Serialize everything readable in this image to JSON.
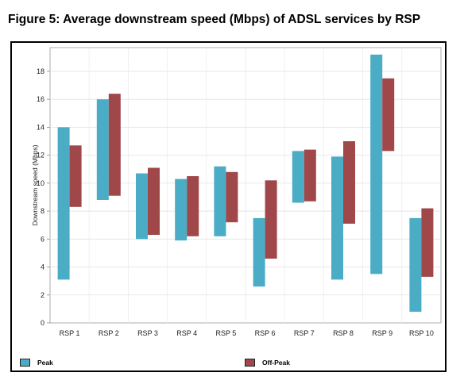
{
  "figure_title": "Figure 5: Average downstream speed (Mbps) of ADSL services by RSP",
  "chart_data": {
    "type": "bar",
    "subtype": "floating-range",
    "categories": [
      "RSP 1",
      "RSP 2",
      "RSP 3",
      "RSP 4",
      "RSP 5",
      "RSP 6",
      "RSP 7",
      "RSP 8",
      "RSP 9",
      "RSP 10"
    ],
    "ylabel": "Downstream speed (Mbps)",
    "xlabel": "",
    "ylim": [
      0,
      19.7
    ],
    "yticks": [
      0,
      2,
      4,
      6,
      8,
      10,
      12,
      14,
      16,
      18
    ],
    "grid": true,
    "legend_position": "bottom",
    "series": [
      {
        "name": "Peak",
        "color": "#4bacc6",
        "ranges": [
          [
            3.1,
            14.0
          ],
          [
            8.8,
            16.0
          ],
          [
            6.0,
            10.7
          ],
          [
            5.9,
            10.3
          ],
          [
            6.2,
            11.2
          ],
          [
            2.6,
            7.5
          ],
          [
            8.6,
            12.3
          ],
          [
            3.1,
            11.9
          ],
          [
            3.5,
            19.2
          ],
          [
            0.8,
            7.5
          ]
        ]
      },
      {
        "name": "Off-Peak",
        "color": "#a0474a",
        "ranges": [
          [
            8.3,
            12.7
          ],
          [
            9.1,
            16.4
          ],
          [
            6.3,
            11.1
          ],
          [
            6.2,
            10.5
          ],
          [
            7.2,
            10.8
          ],
          [
            4.6,
            10.2
          ],
          [
            8.7,
            12.4
          ],
          [
            7.1,
            13.0
          ],
          [
            12.3,
            17.5
          ],
          [
            3.3,
            8.2
          ]
        ]
      }
    ]
  }
}
